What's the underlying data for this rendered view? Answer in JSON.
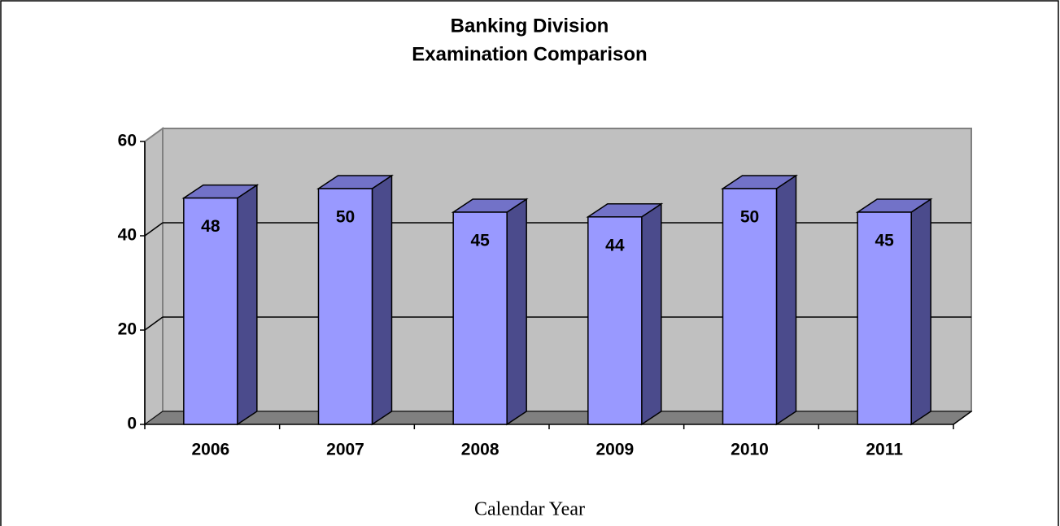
{
  "chart_data": {
    "type": "bar",
    "title": [
      "Banking Division",
      "Examination Comparison"
    ],
    "x_label": "Calendar Year",
    "categories": [
      "2006",
      "2007",
      "2008",
      "2009",
      "2010",
      "2011"
    ],
    "values": [
      48,
      50,
      45,
      44,
      50,
      45
    ],
    "color": "#9999ff",
    "ylim": [
      0,
      60
    ],
    "yticks": [
      0,
      20,
      40,
      60
    ],
    "grid": true
  }
}
